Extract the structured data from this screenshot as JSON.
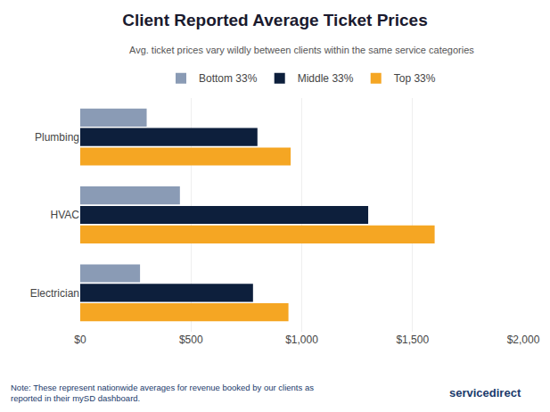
{
  "chart_data": {
    "type": "bar",
    "orientation": "horizontal",
    "title": "Client Reported Average Ticket Prices",
    "subtitle": "Avg. ticket prices vary wildly between clients within the same service categories",
    "categories": [
      "Plumbing",
      "HVAC",
      "Electrician"
    ],
    "series": [
      {
        "name": "Bottom 33%",
        "color": "#8a9bb5",
        "values": [
          300,
          450,
          270
        ]
      },
      {
        "name": "Middle 33%",
        "color": "#0d1f3c",
        "values": [
          800,
          1300,
          780
        ]
      },
      {
        "name": "Top 33%",
        "color": "#f5a623",
        "values": [
          950,
          1600,
          940
        ]
      }
    ],
    "xlim": [
      0,
      2000
    ],
    "xticks": [
      {
        "value": 0,
        "label": "$0"
      },
      {
        "value": 500,
        "label": "$500"
      },
      {
        "value": 1000,
        "label": "$1,000"
      },
      {
        "value": 1500,
        "label": "$1,500"
      },
      {
        "value": 2000,
        "label": "$2,000"
      }
    ],
    "grid": true,
    "legend": "top",
    "annotations": [
      "Note: These represent nationwide averages for revenue booked by our clients as\nreported in their mySD dashboard.",
      "servicedirect"
    ]
  }
}
